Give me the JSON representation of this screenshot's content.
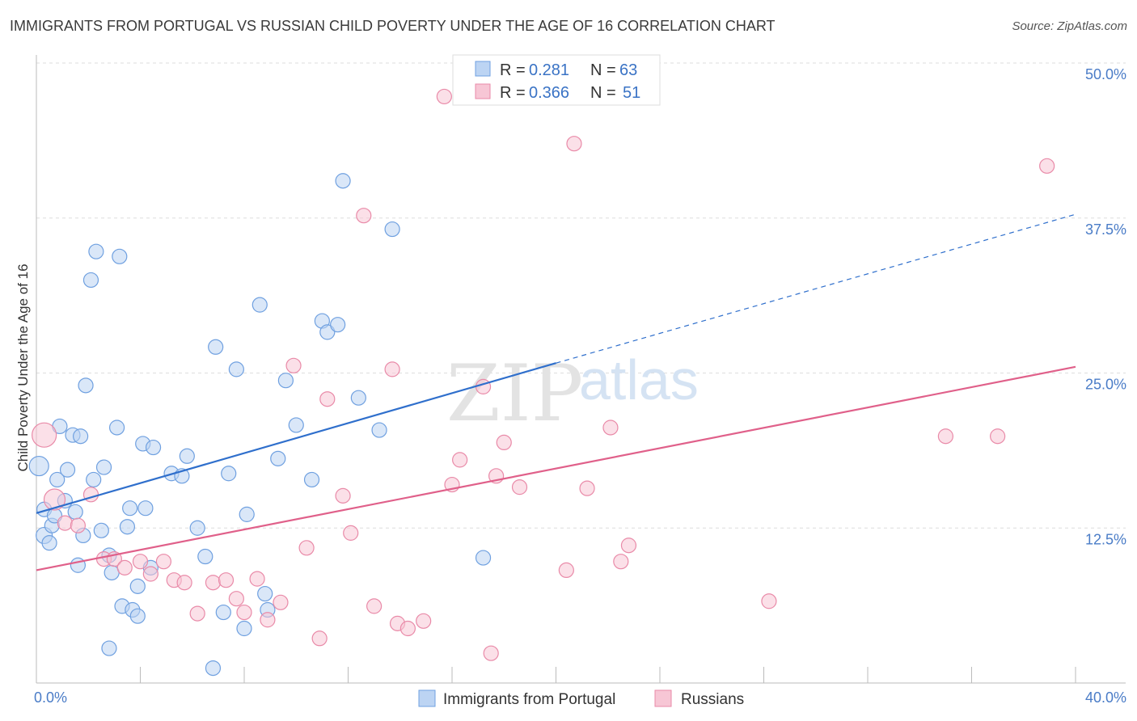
{
  "title": "IMMIGRANTS FROM PORTUGAL VS RUSSIAN CHILD POVERTY UNDER THE AGE OF 16 CORRELATION CHART",
  "source": "Source: ZipAtlas.com",
  "watermark": {
    "zip": "ZIP",
    "atlas": "atlas"
  },
  "colors": {
    "blue": "#6fa0e0",
    "blue_fill": "#bcd4f3",
    "pink": "#e98aa8",
    "pink_fill": "#f7c6d5",
    "blue_line": "#2f6fcc",
    "pink_line": "#e0608a"
  },
  "legend": {
    "rows": [
      {
        "r_label": "R =",
        "r_value": "0.281",
        "n_label": "N =",
        "n_value": "63"
      },
      {
        "r_label": "R =",
        "r_value": "0.366",
        "n_label": "N =",
        "n_value": "51"
      }
    ]
  },
  "bottom_legend": [
    "Immigrants from Portugal",
    "Russians"
  ],
  "chart_data": {
    "type": "scatter",
    "ylabel": "Child Poverty Under the Age of 16",
    "xlabel": "",
    "xlim": [
      0,
      40
    ],
    "ylim": [
      0,
      50
    ],
    "x_tick_labels": [
      "0.0%",
      "40.0%"
    ],
    "y_ticks": [
      12.5,
      25.0,
      37.5,
      50.0
    ],
    "y_tick_labels": [
      "12.5%",
      "25.0%",
      "37.5%",
      "50.0%"
    ],
    "grid": true,
    "legend_position": "top-center",
    "series": [
      {
        "name": "Immigrants from Portugal",
        "color": "#6fa0e0",
        "trend": {
          "x0": 0,
          "y0": 13.7,
          "x1": 20,
          "y1": 25.8,
          "dashed_to_x": 40,
          "dashed_to_y": 37.8
        },
        "points": [
          [
            0.1,
            17.5,
            12
          ],
          [
            0.3,
            14.0,
            9
          ],
          [
            0.3,
            11.9,
            10
          ],
          [
            0.5,
            11.3,
            9
          ],
          [
            0.6,
            12.7,
            9
          ],
          [
            0.7,
            13.5,
            9
          ],
          [
            0.8,
            16.4,
            9
          ],
          [
            0.9,
            20.7,
            9
          ],
          [
            1.1,
            14.7,
            9
          ],
          [
            1.2,
            17.2,
            9
          ],
          [
            1.4,
            20.0,
            9
          ],
          [
            1.5,
            13.8,
            9
          ],
          [
            1.6,
            9.5,
            9
          ],
          [
            1.7,
            19.9,
            9
          ],
          [
            1.8,
            11.9,
            9
          ],
          [
            1.9,
            24.0,
            9
          ],
          [
            2.1,
            32.5,
            9
          ],
          [
            2.2,
            16.4,
            9
          ],
          [
            2.3,
            34.8,
            9
          ],
          [
            2.5,
            12.3,
            9
          ],
          [
            2.6,
            17.4,
            9
          ],
          [
            2.8,
            10.3,
            9
          ],
          [
            2.9,
            8.9,
            9
          ],
          [
            3.1,
            20.6,
            9
          ],
          [
            3.2,
            34.4,
            9
          ],
          [
            3.3,
            6.2,
            9
          ],
          [
            3.5,
            12.6,
            9
          ],
          [
            3.6,
            14.1,
            9
          ],
          [
            3.7,
            5.9,
            9
          ],
          [
            3.9,
            5.4,
            9
          ],
          [
            3.9,
            7.8,
            9
          ],
          [
            4.1,
            19.3,
            9
          ],
          [
            4.2,
            14.1,
            9
          ],
          [
            4.5,
            19.0,
            9
          ],
          [
            2.8,
            2.8,
            9
          ],
          [
            4.4,
            9.3,
            9
          ],
          [
            5.2,
            16.9,
            9
          ],
          [
            5.6,
            16.7,
            9
          ],
          [
            5.8,
            18.3,
            9
          ],
          [
            6.2,
            12.5,
            9
          ],
          [
            6.5,
            10.2,
            9
          ],
          [
            6.8,
            1.2,
            9
          ],
          [
            6.9,
            27.1,
            9
          ],
          [
            7.2,
            5.7,
            9
          ],
          [
            7.4,
            16.9,
            9
          ],
          [
            7.7,
            25.3,
            9
          ],
          [
            8.0,
            4.4,
            9
          ],
          [
            8.1,
            13.6,
            9
          ],
          [
            8.6,
            30.5,
            9
          ],
          [
            8.8,
            7.2,
            9
          ],
          [
            8.9,
            5.9,
            9
          ],
          [
            9.3,
            18.1,
            9
          ],
          [
            9.6,
            24.4,
            9
          ],
          [
            10.0,
            20.8,
            9
          ],
          [
            10.6,
            16.4,
            9
          ],
          [
            11.0,
            29.2,
            9
          ],
          [
            11.2,
            28.3,
            9
          ],
          [
            11.6,
            28.9,
            9
          ],
          [
            11.8,
            40.5,
            9
          ],
          [
            12.4,
            23.0,
            9
          ],
          [
            13.2,
            20.4,
            9
          ],
          [
            13.7,
            36.6,
            9
          ],
          [
            17.2,
            10.1,
            9
          ]
        ]
      },
      {
        "name": "Russians",
        "color": "#e98aa8",
        "trend": {
          "x0": 0,
          "y0": 9.1,
          "x1": 40,
          "y1": 25.5
        },
        "points": [
          [
            0.3,
            20.0,
            15
          ],
          [
            0.7,
            14.8,
            13
          ],
          [
            1.1,
            12.9,
            9
          ],
          [
            1.6,
            12.7,
            9
          ],
          [
            2.1,
            15.2,
            9
          ],
          [
            2.6,
            10.0,
            9
          ],
          [
            3.0,
            10.0,
            9
          ],
          [
            3.4,
            9.3,
            9
          ],
          [
            4.0,
            9.8,
            9
          ],
          [
            4.4,
            8.8,
            9
          ],
          [
            4.9,
            9.8,
            9
          ],
          [
            5.3,
            8.3,
            9
          ],
          [
            5.7,
            8.1,
            9
          ],
          [
            6.2,
            5.6,
            9
          ],
          [
            6.8,
            8.1,
            9
          ],
          [
            7.3,
            8.3,
            9
          ],
          [
            7.7,
            6.8,
            9
          ],
          [
            8.0,
            5.7,
            9
          ],
          [
            8.5,
            8.4,
            9
          ],
          [
            8.9,
            5.1,
            9
          ],
          [
            9.4,
            6.5,
            9
          ],
          [
            9.9,
            25.6,
            9
          ],
          [
            10.4,
            10.9,
            9
          ],
          [
            10.9,
            3.6,
            9
          ],
          [
            11.2,
            22.9,
            9
          ],
          [
            11.8,
            15.1,
            9
          ],
          [
            12.1,
            12.1,
            9
          ],
          [
            12.6,
            37.7,
            9
          ],
          [
            13.0,
            6.2,
            9
          ],
          [
            13.7,
            25.3,
            9
          ],
          [
            13.9,
            4.8,
            9
          ],
          [
            14.3,
            4.4,
            9
          ],
          [
            14.9,
            5.0,
            9
          ],
          [
            15.7,
            47.3,
            9
          ],
          [
            16.0,
            16.0,
            9
          ],
          [
            16.3,
            18.0,
            9
          ],
          [
            17.2,
            23.9,
            9
          ],
          [
            17.5,
            2.4,
            9
          ],
          [
            17.7,
            16.7,
            9
          ],
          [
            18.0,
            19.4,
            9
          ],
          [
            18.6,
            15.8,
            9
          ],
          [
            20.4,
            9.1,
            9
          ],
          [
            20.7,
            43.5,
            9
          ],
          [
            21.2,
            15.7,
            9
          ],
          [
            22.1,
            20.6,
            9
          ],
          [
            22.5,
            9.8,
            9
          ],
          [
            22.8,
            11.1,
            9
          ],
          [
            28.2,
            6.6,
            9
          ],
          [
            35.0,
            19.9,
            9
          ],
          [
            37.0,
            19.9,
            9
          ],
          [
            38.9,
            41.7,
            9
          ]
        ]
      }
    ]
  }
}
